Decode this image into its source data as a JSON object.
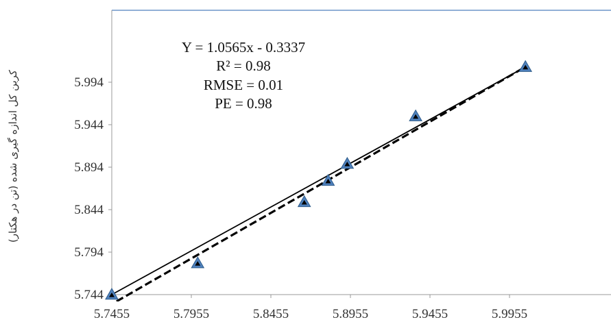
{
  "chart_data": {
    "type": "scatter",
    "title": "",
    "xlabel": "",
    "ylabel": "کربن کل اندازه گیری شده (تن در هکتار)",
    "xlim": [
      5.7455,
      5.9955
    ],
    "ylim": [
      5.744,
      5.994
    ],
    "x_ticks": [
      "5.7455",
      "5.7955",
      "5.8455",
      "5.8955",
      "5.9455",
      "5.9955"
    ],
    "y_ticks": [
      "5.744",
      "5.794",
      "5.844",
      "5.894",
      "5.944",
      "5.994"
    ],
    "points": [
      {
        "x": 5.7455,
        "y": 5.744
      },
      {
        "x": 5.7995,
        "y": 5.781
      },
      {
        "x": 5.8665,
        "y": 5.853
      },
      {
        "x": 5.8815,
        "y": 5.878
      },
      {
        "x": 5.8935,
        "y": 5.898
      },
      {
        "x": 5.9365,
        "y": 5.954
      },
      {
        "x": 6.0055,
        "y": 6.012
      }
    ],
    "lines": [
      {
        "style": "solid",
        "x": [
          5.7455,
          6.0055
        ],
        "y": [
          5.744,
          6.012
        ]
      },
      {
        "style": "dashed",
        "x": [
          5.7485,
          6.0055
        ],
        "y": [
          5.736,
          6.012
        ]
      }
    ],
    "grid": false,
    "legend": "none",
    "annotations": [
      "Y = 1.0565x - 0.3337",
      "R² = 0.98",
      "RMSE = 0.01",
      "PE = 0.98"
    ],
    "colors": {
      "marker_fill": "#4f81bd",
      "marker_inner": "#000000",
      "plot_border": "#4f81bd",
      "line": "#000000"
    }
  }
}
